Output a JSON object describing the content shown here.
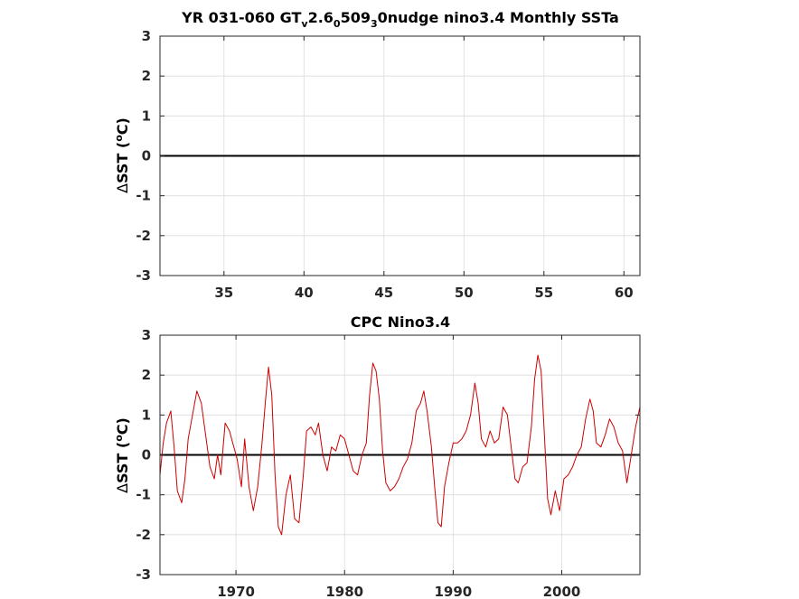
{
  "chart_data": [
    {
      "type": "line",
      "title_parts": {
        "a": "YR 031-060 GT",
        "s1": "v",
        "b": "2.6",
        "s2": "0",
        "c": "509",
        "s3": "3",
        "d": "0nudge nino3.4 Monthly SSTa"
      },
      "ylabel": {
        "delta": "Δ",
        "text": "SST (",
        "sup": "o",
        "unit": "C)"
      },
      "xlim": [
        31,
        61
      ],
      "ylim": [
        -3,
        3
      ],
      "xticks": [
        35,
        40,
        45,
        50,
        55,
        60
      ],
      "yticks": [
        -3,
        -2,
        -1,
        0,
        1,
        2,
        3
      ],
      "grid": true,
      "zero_line": true,
      "series": [
        {
          "color": "#ff0000",
          "x": [],
          "y": []
        }
      ]
    },
    {
      "type": "line",
      "title": "CPC Nino3.4",
      "ylabel": {
        "delta": "Δ",
        "text": "SST (",
        "sup": "o",
        "unit": "C)"
      },
      "xlim": [
        1963,
        2007.2
      ],
      "ylim": [
        -3,
        3
      ],
      "xticks": [
        1970,
        1980,
        1990,
        2000
      ],
      "yticks": [
        -3,
        -2,
        -1,
        0,
        1,
        2,
        3
      ],
      "grid": true,
      "zero_line": true,
      "series": [
        {
          "color": "#cc0000",
          "x": [
            1963.0,
            1963.3,
            1963.6,
            1964.0,
            1964.3,
            1964.6,
            1965.0,
            1965.3,
            1965.6,
            1966.0,
            1966.4,
            1966.8,
            1967.2,
            1967.6,
            1968.0,
            1968.3,
            1968.6,
            1969.0,
            1969.4,
            1969.8,
            1970.1,
            1970.5,
            1970.8,
            1971.2,
            1971.6,
            1972.0,
            1972.4,
            1972.7,
            1973.0,
            1973.3,
            1973.6,
            1973.9,
            1974.2,
            1974.6,
            1975.0,
            1975.4,
            1975.8,
            1976.2,
            1976.5,
            1976.9,
            1977.3,
            1977.6,
            1978.0,
            1978.4,
            1978.8,
            1979.2,
            1979.6,
            1980.0,
            1980.4,
            1980.8,
            1981.2,
            1981.6,
            1982.0,
            1982.3,
            1982.6,
            1982.9,
            1983.2,
            1983.5,
            1983.8,
            1984.2,
            1984.6,
            1985.0,
            1985.4,
            1985.8,
            1986.2,
            1986.6,
            1987.0,
            1987.3,
            1987.6,
            1988.0,
            1988.3,
            1988.6,
            1988.9,
            1989.2,
            1989.6,
            1990.0,
            1990.4,
            1990.8,
            1991.2,
            1991.6,
            1992.0,
            1992.3,
            1992.6,
            1993.0,
            1993.4,
            1993.8,
            1994.2,
            1994.6,
            1995.0,
            1995.3,
            1995.7,
            1996.0,
            1996.4,
            1996.8,
            1997.2,
            1997.5,
            1997.8,
            1998.1,
            1998.4,
            1998.7,
            1999.0,
            1999.4,
            1999.8,
            2000.2,
            2000.6,
            2001.0,
            2001.4,
            2001.8,
            2002.2,
            2002.6,
            2002.9,
            2003.2,
            2003.6,
            2004.0,
            2004.4,
            2004.8,
            2005.2,
            2005.6,
            2006.0,
            2006.4,
            2006.8,
            2007.2
          ],
          "y": [
            -0.5,
            0.3,
            0.8,
            1.1,
            0.2,
            -0.9,
            -1.2,
            -0.6,
            0.4,
            1.0,
            1.6,
            1.3,
            0.5,
            -0.3,
            -0.6,
            0.0,
            -0.5,
            0.8,
            0.6,
            0.2,
            -0.1,
            -0.8,
            0.4,
            -0.8,
            -1.4,
            -0.8,
            0.3,
            1.3,
            2.2,
            1.5,
            -0.5,
            -1.8,
            -2.0,
            -1.0,
            -0.5,
            -1.6,
            -1.7,
            -0.5,
            0.6,
            0.7,
            0.5,
            0.8,
            0.0,
            -0.4,
            0.2,
            0.1,
            0.5,
            0.4,
            0.0,
            -0.4,
            -0.5,
            0.0,
            0.3,
            1.5,
            2.3,
            2.1,
            1.4,
            0.1,
            -0.7,
            -0.9,
            -0.8,
            -0.6,
            -0.3,
            -0.1,
            0.3,
            1.1,
            1.3,
            1.6,
            1.1,
            0.2,
            -0.8,
            -1.7,
            -1.8,
            -0.8,
            -0.2,
            0.3,
            0.3,
            0.4,
            0.6,
            1.0,
            1.8,
            1.3,
            0.4,
            0.2,
            0.6,
            0.3,
            0.4,
            1.2,
            1.0,
            0.3,
            -0.6,
            -0.7,
            -0.3,
            -0.2,
            0.7,
            1.9,
            2.5,
            2.1,
            0.5,
            -1.1,
            -1.5,
            -0.9,
            -1.4,
            -0.6,
            -0.5,
            -0.3,
            0.0,
            0.2,
            0.9,
            1.4,
            1.1,
            0.3,
            0.2,
            0.5,
            0.9,
            0.7,
            0.3,
            0.1,
            -0.7,
            0.0,
            0.7,
            1.2
          ]
        }
      ]
    }
  ]
}
